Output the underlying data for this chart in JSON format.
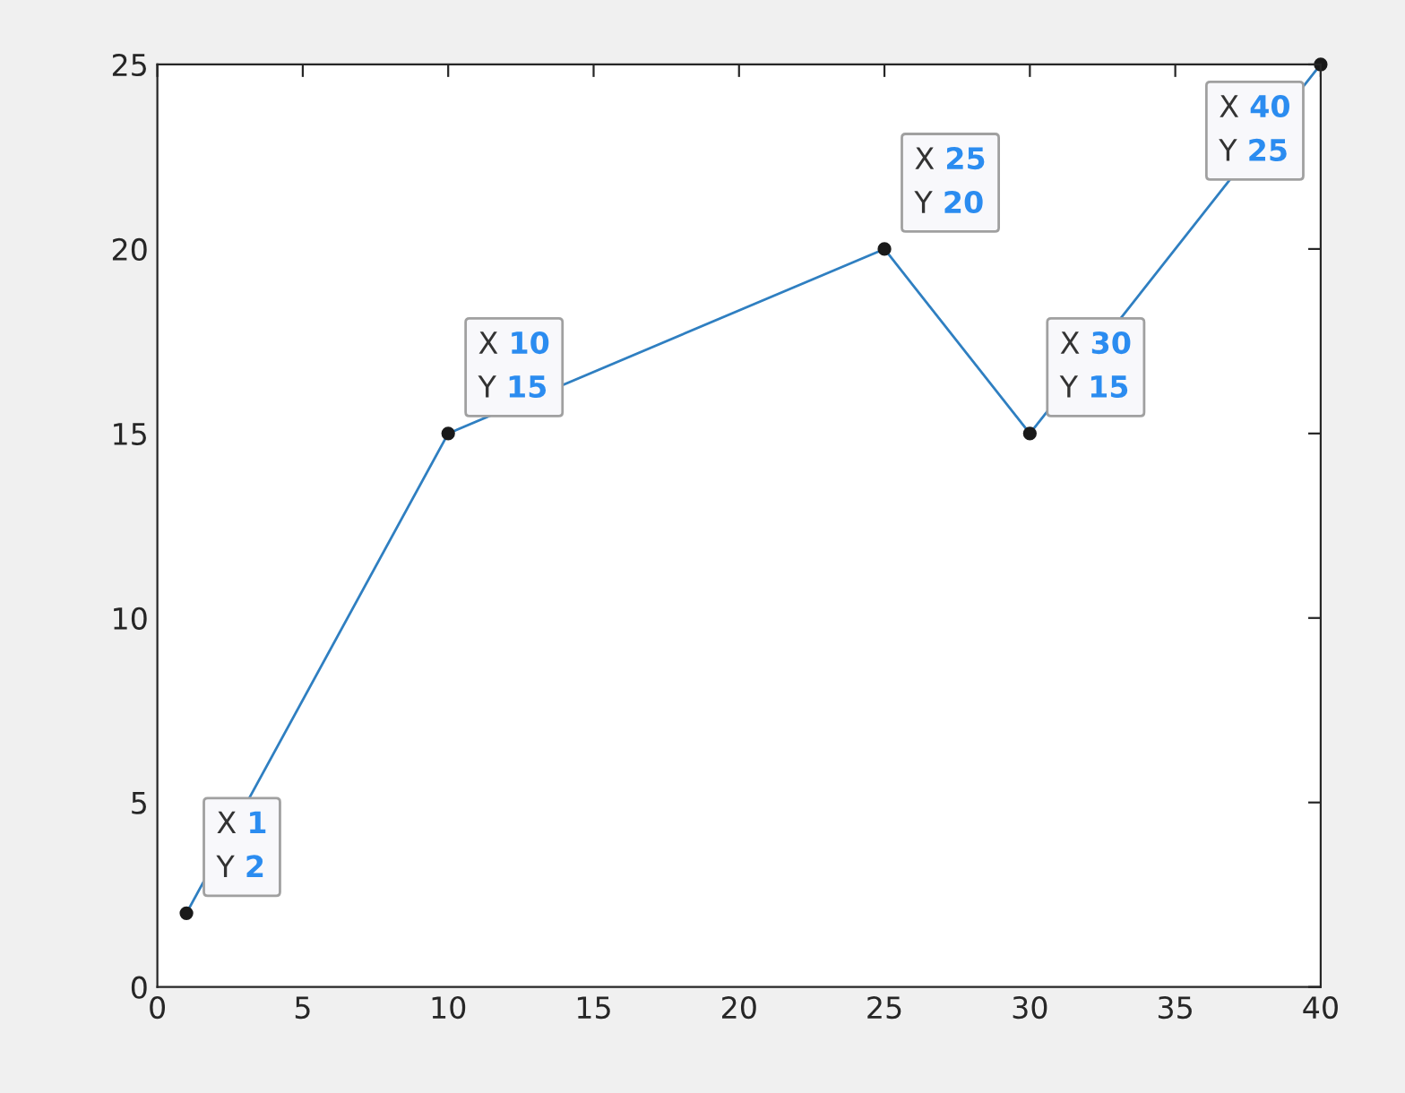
{
  "chart_data": {
    "type": "line",
    "x": [
      1,
      10,
      25,
      30,
      40
    ],
    "series": [
      {
        "color": "#2f7fc1",
        "values": [
          2,
          15,
          20,
          15,
          25
        ],
        "value_labels": [
          "X 1\nY 2",
          "X 10\nY 15",
          "X 25\nY 20",
          "X 30\nY 15",
          "X 40\nY 25"
        ]
      }
    ],
    "xlim": [
      0,
      40
    ],
    "ylim": [
      0,
      25
    ],
    "xticks": [
      0,
      5,
      10,
      15,
      20,
      25,
      30,
      35,
      40
    ],
    "yticks": [
      0,
      5,
      10,
      15,
      20,
      25
    ],
    "marker": "circle",
    "line_style": "solid",
    "grid": false,
    "legend": false
  }
}
